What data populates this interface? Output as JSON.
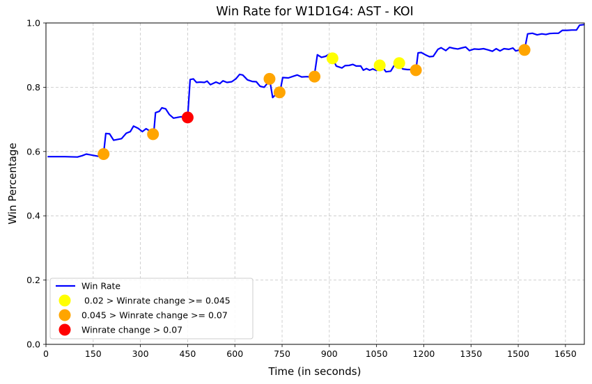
{
  "chart_data": {
    "type": "line",
    "title": "Win Rate for W1D1G4: AST - KOI",
    "xlabel": "Time (in seconds)",
    "ylabel": "Win Percentage",
    "xlim": [
      0,
      1710
    ],
    "ylim": [
      0.0,
      1.0
    ],
    "xticks": [
      0,
      150,
      300,
      450,
      600,
      750,
      900,
      1050,
      1200,
      1350,
      1500,
      1650
    ],
    "yticks": [
      0.0,
      0.2,
      0.4,
      0.6,
      0.8,
      1.0
    ],
    "grid": true,
    "legend_position": "lower-left",
    "series": [
      {
        "name": "Win Rate",
        "color": "#0000ff",
        "points": [
          [
            5,
            0.584
          ],
          [
            60,
            0.584
          ],
          [
            100,
            0.583
          ],
          [
            115,
            0.587
          ],
          [
            128,
            0.592
          ],
          [
            150,
            0.588
          ],
          [
            178,
            0.583
          ],
          [
            183,
            0.592
          ],
          [
            190,
            0.656
          ],
          [
            202,
            0.655
          ],
          [
            215,
            0.635
          ],
          [
            240,
            0.64
          ],
          [
            255,
            0.657
          ],
          [
            268,
            0.662
          ],
          [
            278,
            0.679
          ],
          [
            293,
            0.672
          ],
          [
            306,
            0.662
          ],
          [
            318,
            0.671
          ],
          [
            328,
            0.665
          ],
          [
            342,
            0.654
          ],
          [
            348,
            0.721
          ],
          [
            360,
            0.725
          ],
          [
            368,
            0.736
          ],
          [
            380,
            0.733
          ],
          [
            392,
            0.715
          ],
          [
            405,
            0.704
          ],
          [
            428,
            0.708
          ],
          [
            450,
            0.706
          ],
          [
            458,
            0.824
          ],
          [
            468,
            0.826
          ],
          [
            478,
            0.815
          ],
          [
            490,
            0.816
          ],
          [
            503,
            0.815
          ],
          [
            512,
            0.819
          ],
          [
            522,
            0.808
          ],
          [
            540,
            0.816
          ],
          [
            552,
            0.811
          ],
          [
            562,
            0.82
          ],
          [
            575,
            0.815
          ],
          [
            590,
            0.817
          ],
          [
            603,
            0.826
          ],
          [
            615,
            0.84
          ],
          [
            625,
            0.838
          ],
          [
            640,
            0.823
          ],
          [
            655,
            0.818
          ],
          [
            668,
            0.817
          ],
          [
            680,
            0.803
          ],
          [
            693,
            0.8
          ],
          [
            703,
            0.812
          ],
          [
            710,
            0.826
          ],
          [
            720,
            0.768
          ],
          [
            730,
            0.778
          ],
          [
            743,
            0.784
          ],
          [
            752,
            0.83
          ],
          [
            770,
            0.829
          ],
          [
            785,
            0.834
          ],
          [
            798,
            0.838
          ],
          [
            812,
            0.832
          ],
          [
            828,
            0.833
          ],
          [
            840,
            0.832
          ],
          [
            852,
            0.833
          ],
          [
            862,
            0.901
          ],
          [
            875,
            0.893
          ],
          [
            888,
            0.896
          ],
          [
            900,
            0.903
          ],
          [
            910,
            0.89
          ],
          [
            922,
            0.866
          ],
          [
            940,
            0.86
          ],
          [
            950,
            0.867
          ],
          [
            963,
            0.868
          ],
          [
            975,
            0.871
          ],
          [
            985,
            0.866
          ],
          [
            1000,
            0.866
          ],
          [
            1008,
            0.853
          ],
          [
            1018,
            0.858
          ],
          [
            1028,
            0.853
          ],
          [
            1038,
            0.857
          ],
          [
            1050,
            0.852
          ],
          [
            1065,
            0.868
          ],
          [
            1080,
            0.848
          ],
          [
            1095,
            0.85
          ],
          [
            1106,
            0.868
          ],
          [
            1120,
            0.875
          ],
          [
            1133,
            0.857
          ],
          [
            1148,
            0.855
          ],
          [
            1162,
            0.855
          ],
          [
            1175,
            0.853
          ],
          [
            1182,
            0.907
          ],
          [
            1192,
            0.908
          ],
          [
            1205,
            0.901
          ],
          [
            1218,
            0.895
          ],
          [
            1230,
            0.896
          ],
          [
            1245,
            0.918
          ],
          [
            1255,
            0.923
          ],
          [
            1270,
            0.914
          ],
          [
            1282,
            0.924
          ],
          [
            1295,
            0.921
          ],
          [
            1308,
            0.919
          ],
          [
            1320,
            0.922
          ],
          [
            1333,
            0.925
          ],
          [
            1345,
            0.914
          ],
          [
            1360,
            0.919
          ],
          [
            1375,
            0.918
          ],
          [
            1390,
            0.92
          ],
          [
            1405,
            0.916
          ],
          [
            1418,
            0.912
          ],
          [
            1430,
            0.92
          ],
          [
            1442,
            0.913
          ],
          [
            1455,
            0.92
          ],
          [
            1470,
            0.918
          ],
          [
            1483,
            0.922
          ],
          [
            1492,
            0.913
          ],
          [
            1505,
            0.916
          ],
          [
            1520,
            0.916
          ],
          [
            1530,
            0.966
          ],
          [
            1545,
            0.968
          ],
          [
            1560,
            0.963
          ],
          [
            1575,
            0.966
          ],
          [
            1588,
            0.964
          ],
          [
            1600,
            0.967
          ],
          [
            1615,
            0.968
          ],
          [
            1628,
            0.968
          ],
          [
            1640,
            0.977
          ],
          [
            1655,
            0.977
          ],
          [
            1670,
            0.978
          ],
          [
            1685,
            0.978
          ],
          [
            1695,
            0.993
          ],
          [
            1710,
            0.995
          ]
        ]
      }
    ],
    "markers": [
      {
        "name": " 0.02 > Winrate change >= 0.045",
        "color": "#ffff00",
        "points": [
          [
            910,
            0.89
          ],
          [
            1060,
            0.868
          ],
          [
            1122,
            0.875
          ]
        ]
      },
      {
        "name": "0.045 > Winrate change >= 0.07",
        "color": "#ffa500",
        "points": [
          [
            183,
            0.592
          ],
          [
            340,
            0.654
          ],
          [
            710,
            0.826
          ],
          [
            742,
            0.784
          ],
          [
            853,
            0.833
          ],
          [
            1175,
            0.853
          ],
          [
            1520,
            0.916
          ]
        ]
      },
      {
        "name": "Winrate change > 0.07",
        "color": "#ff0000",
        "points": [
          [
            450,
            0.706
          ]
        ]
      }
    ]
  }
}
